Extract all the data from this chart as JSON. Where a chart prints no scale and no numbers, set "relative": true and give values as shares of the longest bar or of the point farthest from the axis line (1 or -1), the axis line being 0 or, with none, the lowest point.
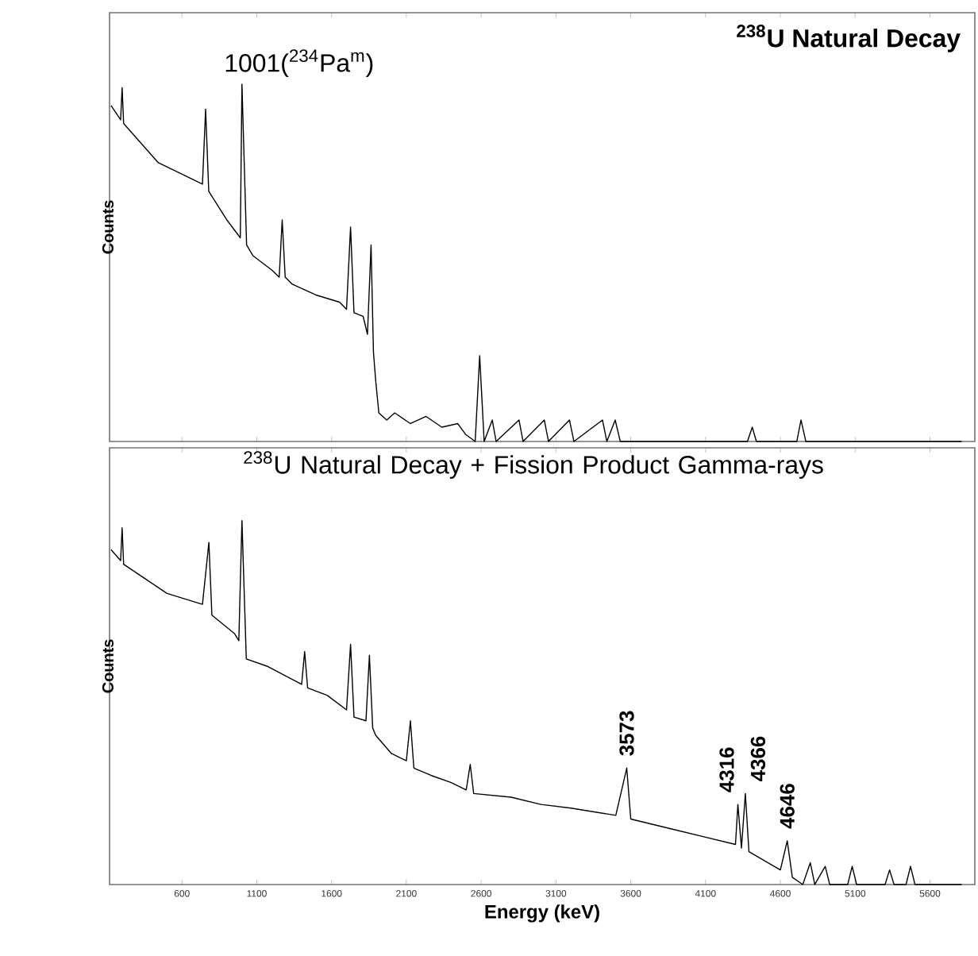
{
  "chart_data": [
    {
      "type": "line",
      "title": "$^{238}$U Natural Decay",
      "ylabel": "Counts",
      "relative": true,
      "tick_labels": false,
      "annotations": [
        {
          "text": "1001($^{234}$Pa$^{m}$)",
          "x": 1001,
          "y": 1.0
        }
      ],
      "xlim": [
        116,
        5900
      ],
      "xticks": [
        600,
        1100,
        1600,
        2100,
        2600,
        3100,
        3600,
        4100,
        4600,
        5100,
        5600
      ],
      "series": [
        {
          "color": "#000000",
          "x": [
            126,
            190,
            200,
            210,
            442,
            737,
            758,
            779,
            900,
            990,
            1001,
            1032,
            1074,
            1200,
            1250,
            1270,
            1290,
            1337,
            1495,
            1653,
            1700,
            1727,
            1750,
            1811,
            1840,
            1864,
            1880,
            1895,
            1916,
            1969,
            2022,
            2127,
            2232,
            2337,
            2443,
            2495,
            2560,
            2590,
            2620,
            2674,
            2700,
            2853,
            2880,
            3022,
            3050,
            3190,
            3220,
            3411,
            3440,
            3496,
            3530,
            4380,
            4412,
            4440,
            4710,
            4738,
            4770,
            5812
          ],
          "values": [
            0.94,
            0.9,
            0.99,
            0.89,
            0.78,
            0.72,
            0.93,
            0.7,
            0.62,
            0.57,
            1.0,
            0.55,
            0.52,
            0.48,
            0.46,
            0.62,
            0.46,
            0.44,
            0.41,
            0.39,
            0.37,
            0.6,
            0.36,
            0.35,
            0.3,
            0.55,
            0.25,
            0.17,
            0.08,
            0.06,
            0.08,
            0.05,
            0.07,
            0.04,
            0.05,
            0.02,
            0,
            0.24,
            0,
            0.06,
            0,
            0.06,
            0,
            0.06,
            0,
            0.06,
            0,
            0.06,
            0,
            0.06,
            0,
            0,
            0.04,
            0,
            0,
            0.06,
            0,
            0
          ]
        }
      ]
    },
    {
      "type": "line",
      "title": "$^{238}$U Natural Decay + Fission Product Gamma-rays",
      "xlabel": "Energy (keV)",
      "ylabel": "Counts",
      "relative": true,
      "tick_labels": "x",
      "annotations": [
        {
          "text": "3573",
          "x": 3573,
          "y": 0.32
        },
        {
          "text": "4316",
          "x": 4316,
          "y": 0.22
        },
        {
          "text": "4366",
          "x": 4366,
          "y": 0.25
        },
        {
          "text": "4646",
          "x": 4646,
          "y": 0.12
        }
      ],
      "xlim": [
        116,
        5900
      ],
      "xticks": [
        600,
        1100,
        1600,
        2100,
        2600,
        3100,
        3600,
        4100,
        4600,
        5100,
        5600
      ],
      "series": [
        {
          "color": "#000000",
          "x": [
            126,
            190,
            200,
            210,
            500,
            737,
            780,
            800,
            950,
            980,
            1001,
            1030,
            1168,
            1400,
            1420,
            1440,
            1570,
            1700,
            1727,
            1750,
            1830,
            1853,
            1875,
            1895,
            2000,
            2100,
            2127,
            2150,
            2264,
            2400,
            2500,
            2527,
            2550,
            2800,
            3000,
            3200,
            3500,
            3573,
            3600,
            3900,
            4100,
            4300,
            4316,
            4340,
            4366,
            4390,
            4600,
            4646,
            4680,
            4750,
            4800,
            4830,
            4900,
            4930,
            5050,
            5080,
            5110,
            5300,
            5330,
            5360,
            5440,
            5470,
            5500,
            5812
          ],
          "values": [
            0.92,
            0.89,
            0.98,
            0.88,
            0.8,
            0.77,
            0.94,
            0.74,
            0.69,
            0.67,
            1.0,
            0.62,
            0.6,
            0.55,
            0.64,
            0.54,
            0.52,
            0.48,
            0.66,
            0.46,
            0.45,
            0.63,
            0.43,
            0.41,
            0.36,
            0.34,
            0.45,
            0.32,
            0.3,
            0.28,
            0.26,
            0.33,
            0.25,
            0.24,
            0.22,
            0.21,
            0.19,
            0.32,
            0.18,
            0.15,
            0.13,
            0.11,
            0.22,
            0.1,
            0.25,
            0.09,
            0.04,
            0.12,
            0.02,
            0,
            0.06,
            0,
            0.05,
            0,
            0,
            0.05,
            0,
            0,
            0.04,
            0,
            0,
            0.05,
            0,
            0
          ]
        }
      ]
    }
  ]
}
